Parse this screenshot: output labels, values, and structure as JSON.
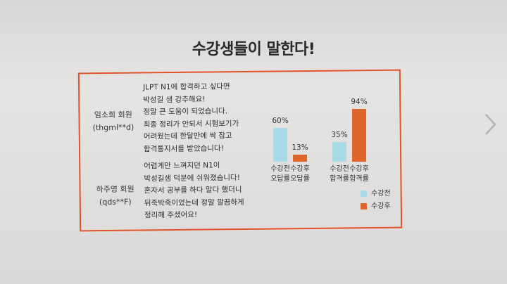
{
  "title": "수강생들이 말한다!",
  "reviews": [
    {
      "name": "임소희 회원",
      "handle": "(thgml**d)",
      "text": "JLPT N1에 합격하고 싶다면\n박성길 샘 강추해요!\n정말 큰 도움이 되었습니다.\n최종 정리가 안되서 시험보기가\n어려웠는데 한달만에 싹 잡고\n합격통지서를 받았습니다!"
    },
    {
      "name": "하주영 회원",
      "handle": "(qds**F)",
      "text": "어렵게만 느껴지던 N1이\n박성길샘 덕분에 쉬워졌습니다!\n혼자서 공부를 하다 말다 했더니\n뒤죽박죽이었는데 정말 깔끔하게\n정리해 주셨어요!"
    }
  ],
  "chart_data": {
    "type": "bar",
    "groups": [
      {
        "before_label": [
          "수강전",
          "오답률"
        ],
        "after_label": [
          "수강후",
          "오답률"
        ],
        "before": 60,
        "after": 13
      },
      {
        "before_label": [
          "수강전",
          "합격률"
        ],
        "after_label": [
          "수강후",
          "합격률"
        ],
        "before": 35,
        "after": 94
      }
    ],
    "value_labels": [
      [
        "60%",
        "13%"
      ],
      [
        "35%",
        "94%"
      ]
    ],
    "series": [
      {
        "name": "수강전",
        "color": "#a9dbe6"
      },
      {
        "name": "수강후",
        "color": "#e0652a"
      }
    ],
    "ylim": [
      0,
      100
    ]
  },
  "nav": {
    "next_icon": "chevron-right-icon"
  }
}
